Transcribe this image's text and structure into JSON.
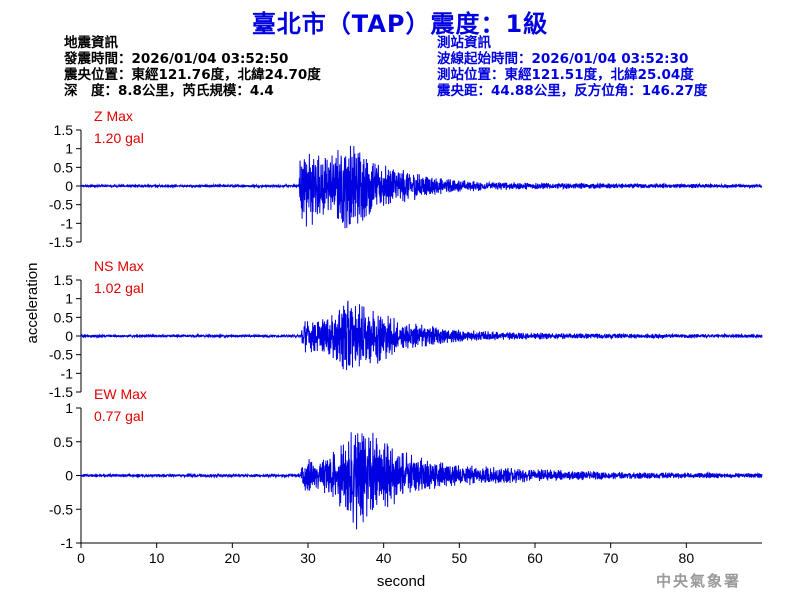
{
  "title": "臺北市（TAP）震度：1級",
  "info_left": {
    "heading": "地震資訊",
    "origin_time": "發震時間：2026/01/04 03:52:50",
    "epicenter": "震央位置：東經121.76度，北緯24.70度",
    "depth_magnitude": "深　度：8.8公里，芮氏規模：4.4"
  },
  "info_right": {
    "heading": "測站資訊",
    "wave_start": "波線起始時間：2026/01/04 03:52:30",
    "station_location": "測站位置：東經121.51度，北緯25.04度",
    "distance_azimuth": "震央距：44.88公里，反方位角：146.27度"
  },
  "agency": "中央氣象署",
  "colors": {
    "trace": "#0000e0",
    "title": "#0000e0",
    "max_label": "#e00000",
    "axis": "#000000"
  },
  "chart_data": {
    "type": "line",
    "xlabel": "second",
    "ylabel": "acceleration",
    "xlim": [
      0,
      90
    ],
    "xticks": [
      "0",
      "10",
      "20",
      "30",
      "40",
      "50",
      "60",
      "70",
      "80"
    ],
    "xtick_values": [
      0,
      10,
      20,
      30,
      40,
      50,
      60,
      70,
      80
    ],
    "grid": false,
    "panels": [
      {
        "name": "Z",
        "max_label": "Z Max",
        "max_value": "1.20 gal",
        "ylim": [
          -1.5,
          1.5
        ],
        "yticks": [
          "1.5",
          "1",
          "0.5",
          "0",
          "-0.5",
          "-1",
          "-1.5"
        ],
        "ytick_values": [
          1.5,
          1,
          0.5,
          0,
          -0.5,
          -1,
          -1.5
        ],
        "envelope": [
          [
            0,
            0.03
          ],
          [
            28.8,
            0.03
          ],
          [
            29.0,
            1.1
          ],
          [
            29.6,
            1.2
          ],
          [
            31,
            0.85
          ],
          [
            33,
            0.75
          ],
          [
            35.5,
            1.2
          ],
          [
            37,
            0.9
          ],
          [
            40,
            0.6
          ],
          [
            43,
            0.4
          ],
          [
            46,
            0.25
          ],
          [
            50,
            0.15
          ],
          [
            56,
            0.1
          ],
          [
            65,
            0.07
          ],
          [
            90,
            0.04
          ]
        ]
      },
      {
        "name": "NS",
        "max_label": "NS Max",
        "max_value": "1.02 gal",
        "ylim": [
          -1.5,
          1.5
        ],
        "yticks": [
          "1.5",
          "1",
          "0.5",
          "0",
          "-0.5",
          "-1",
          "-1.5"
        ],
        "ytick_values": [
          1.5,
          1,
          0.5,
          0,
          -0.5,
          -1,
          -1.5
        ],
        "envelope": [
          [
            0,
            0.03
          ],
          [
            29,
            0.03
          ],
          [
            29.3,
            0.4
          ],
          [
            31,
            0.4
          ],
          [
            33,
            0.55
          ],
          [
            35,
            1.02
          ],
          [
            37,
            0.85
          ],
          [
            39,
            0.7
          ],
          [
            42,
            0.4
          ],
          [
            46,
            0.25
          ],
          [
            50,
            0.15
          ],
          [
            56,
            0.1
          ],
          [
            65,
            0.07
          ],
          [
            90,
            0.04
          ]
        ]
      },
      {
        "name": "EW",
        "max_label": "EW Max",
        "max_value": "0.77 gal",
        "ylim": [
          -1,
          1
        ],
        "yticks": [
          "1",
          "0.5",
          "0",
          "-0.5",
          "-1"
        ],
        "ytick_values": [
          1,
          0.5,
          0,
          -0.5,
          -1
        ],
        "envelope": [
          [
            0,
            0.02
          ],
          [
            29,
            0.02
          ],
          [
            29.3,
            0.25
          ],
          [
            31,
            0.2
          ],
          [
            34,
            0.4
          ],
          [
            36,
            0.72
          ],
          [
            37.5,
            0.77
          ],
          [
            39,
            0.6
          ],
          [
            42,
            0.35
          ],
          [
            46,
            0.22
          ],
          [
            50,
            0.15
          ],
          [
            56,
            0.11
          ],
          [
            62,
            0.08
          ],
          [
            70,
            0.05
          ],
          [
            90,
            0.03
          ]
        ]
      }
    ]
  }
}
